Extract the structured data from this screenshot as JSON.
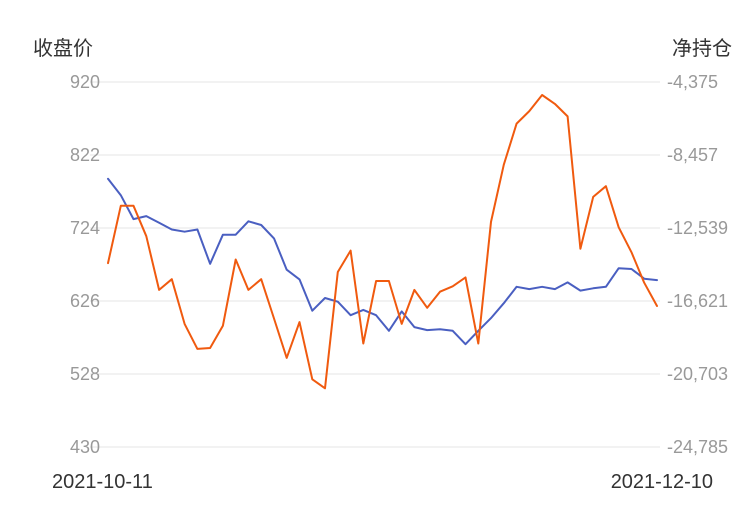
{
  "chart_data": {
    "type": "line",
    "y_left_title": "收盘价",
    "y_right_title": "净持仓",
    "x_start_label": "2021-10-11",
    "x_end_label": "2021-12-10",
    "y_left_ticks": [
      "920",
      "822",
      "724",
      "626",
      "528",
      "430"
    ],
    "y_right_ticks": [
      "-4,375",
      "-8,457",
      "-12,539",
      "-16,621",
      "-20,703",
      "-24,785"
    ],
    "y_left_range": [
      430,
      920
    ],
    "y_right_range": [
      -24785,
      -4375
    ],
    "grid": true,
    "series": [
      {
        "axis": "left",
        "color": "#4a5fc1",
        "values": [
          790,
          768,
          736,
          740,
          731,
          722,
          719,
          722,
          676,
          715,
          715,
          733,
          728,
          710,
          668,
          655,
          613,
          630,
          625,
          607,
          614,
          607,
          586,
          612,
          591,
          587,
          588,
          586,
          568,
          586,
          603,
          623,
          645,
          642,
          645,
          642,
          651,
          640,
          643,
          645,
          670,
          669,
          656,
          654
        ]
      },
      {
        "axis": "right",
        "color": "#f05a0f",
        "values": [
          -14500,
          -11300,
          -11300,
          -13000,
          -16000,
          -15400,
          -17900,
          -19300,
          -19250,
          -18000,
          -14300,
          -16000,
          -15400,
          -17600,
          -19800,
          -17800,
          -21000,
          -21500,
          -15000,
          -13800,
          -19000,
          -15500,
          -15500,
          -17900,
          -16000,
          -17000,
          -16100,
          -15800,
          -15300,
          -19000,
          -12200,
          -9000,
          -6700,
          -6000,
          -5100,
          -5600,
          -6300,
          -13700,
          -10800,
          -10200,
          -12500,
          -13900,
          -15600,
          -16900
        ]
      }
    ]
  }
}
